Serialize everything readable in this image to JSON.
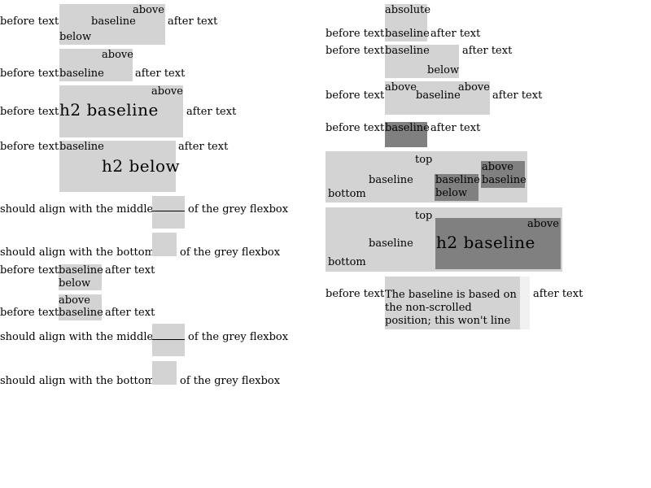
{
  "left": {
    "r1": {
      "before": "before text",
      "above": "above",
      "baseline": "baseline",
      "below": "below",
      "after": "after text"
    },
    "r2": {
      "before": "before text",
      "above": "above",
      "baseline": "baseline",
      "after": "after text"
    },
    "r3": {
      "before": "before text",
      "above": "above",
      "h2": "h2 baseline",
      "after": "after text"
    },
    "r4": {
      "before": "before text",
      "baseline": "baseline",
      "h2": "h2 below",
      "after": "after text"
    },
    "r5": {
      "left": "should align with the middle",
      "right": "of the grey flexbox"
    },
    "r6": {
      "left": "should align with the bottom",
      "right": "of the grey flexbox"
    },
    "r7": {
      "before": "before text",
      "baseline": "baseline",
      "below": "below",
      "after": "after text"
    },
    "r8": {
      "before": "before text",
      "above": "above",
      "baseline": "baseline",
      "after": "after text"
    },
    "r9": {
      "left": "should align with the middle",
      "right": "of the grey flexbox"
    },
    "r10": {
      "left": "should align with the bottom",
      "right": "of the grey flexbox"
    }
  },
  "right": {
    "r1": {
      "absolute": "absolute",
      "before": "before text",
      "baseline": "baseline",
      "after": "after text"
    },
    "r2": {
      "before": "before text",
      "baseline": "baseline",
      "below": "below",
      "after": "after text"
    },
    "r3": {
      "before": "before text",
      "above1": "above",
      "baseline": "baseline",
      "above2": "above",
      "after": "after text"
    },
    "r4": {
      "before": "before text",
      "baseline": "baseline",
      "after": "after text"
    },
    "r5": {
      "top": "top",
      "baseline": "baseline",
      "bottom": "bottom",
      "inner_baseline": "baseline",
      "inner_below": "below",
      "inner2_above": "above",
      "inner2_baseline": "baseline"
    },
    "r6": {
      "top": "top",
      "baseline": "baseline",
      "bottom": "bottom",
      "above": "above",
      "h2": "h2 baseline"
    },
    "r7": {
      "before": "before text",
      "scroll_text": "The baseline is based on the non-scrolled position; this won't line up.",
      "after": "after text"
    }
  },
  "colors": {
    "light_grey": "#d3d3d3",
    "dark_grey": "#808080"
  }
}
